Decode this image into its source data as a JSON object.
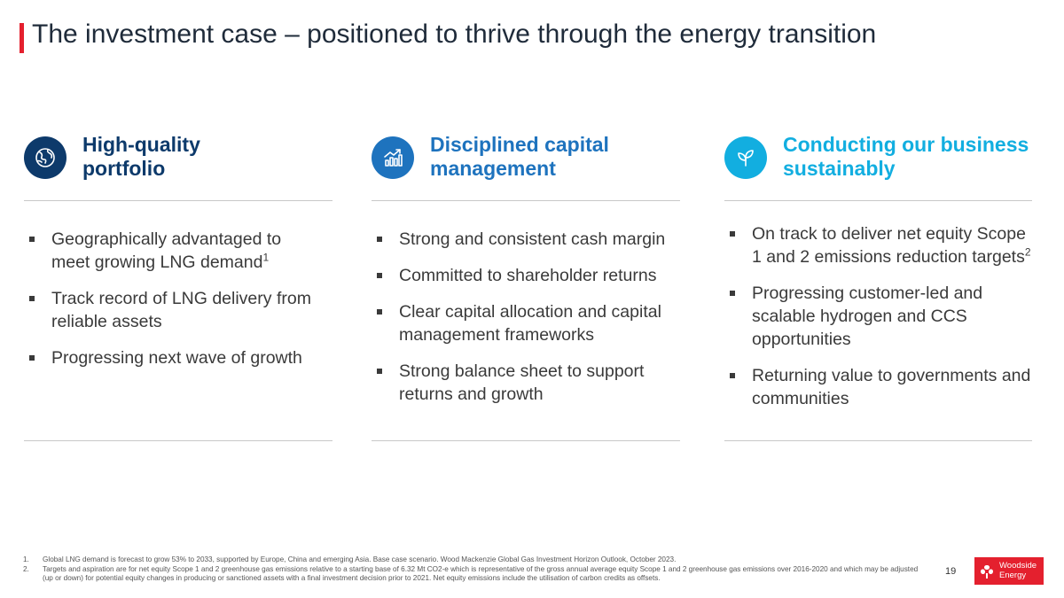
{
  "title": "The investment case – positioned to thrive through the energy transition",
  "colors": {
    "accent_red": "#e4202e",
    "navy": "#0d3a6b",
    "mid_blue": "#1e73be",
    "cyan": "#12aee0"
  },
  "columns": [
    {
      "icon": "globe-icon",
      "color": "#0d3a6b",
      "title_line1": "High-quality",
      "title_line2": "portfolio",
      "bullets": [
        {
          "text": "Geographically advantaged to meet growing LNG demand",
          "sup": "1"
        },
        {
          "text": "Track record of LNG delivery from reliable assets"
        },
        {
          "text": "Progressing next wave of growth"
        }
      ]
    },
    {
      "icon": "growth-chart-icon",
      "color": "#1e73be",
      "title_line1": "Disciplined capital",
      "title_line2": "management",
      "bullets": [
        {
          "text": "Strong and consistent cash margin"
        },
        {
          "text": "Committed to shareholder returns"
        },
        {
          "text": "Clear capital allocation and capital management frameworks"
        },
        {
          "text": "Strong balance sheet to support returns and growth"
        }
      ]
    },
    {
      "icon": "leaf-icon",
      "color": "#12aee0",
      "title_line1": "Conducting our business",
      "title_line2": "sustainably",
      "bullets": [
        {
          "text": "On track to deliver net equity Scope 1 and 2 emissions reduction targets",
          "sup": "2"
        },
        {
          "text": "Progressing customer-led and scalable hydrogen and CCS opportunities"
        },
        {
          "text": "Returning value to governments and communities"
        }
      ]
    }
  ],
  "footnotes": [
    {
      "num": "1.",
      "text": "Global LNG demand is forecast to grow 53% to 2033, supported by Europe, China and emerging Asia. Base case scenario. Wood Mackenzie Global Gas Investment Horizon Outlook, October 2023."
    },
    {
      "num": "2.",
      "text": "Targets and aspiration are for net equity Scope 1 and 2 greenhouse gas emissions relative to a starting base of 6.32 Mt CO2-e which is representative of the gross annual average equity Scope 1 and 2 greenhouse gas emissions over 2016-2020 and which may be adjusted (up or down) for potential equity changes in producing or sanctioned assets with a final investment decision prior to 2021. Net equity emissions include the utilisation of carbon credits as offsets."
    }
  ],
  "page_number": "19",
  "logo": {
    "line1": "Woodside",
    "line2": "Energy"
  }
}
